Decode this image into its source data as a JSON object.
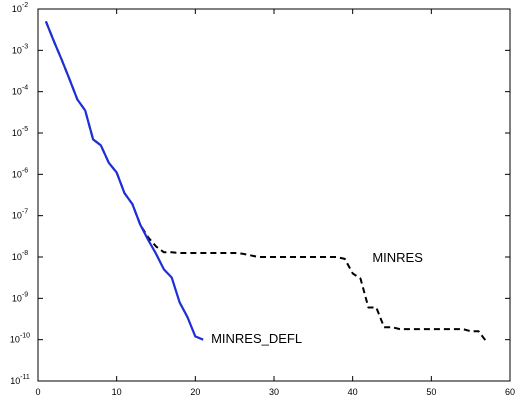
{
  "chart_data": {
    "type": "line",
    "title": "",
    "xlabel": "",
    "ylabel": "",
    "xlim": [
      0,
      60
    ],
    "ylim": [
      1e-11,
      0.01
    ],
    "yscale": "log",
    "grid": false,
    "x_ticks": [
      0,
      10,
      20,
      30,
      40,
      50,
      60
    ],
    "x_tick_labels": [
      "0",
      "10",
      "20",
      "30",
      "40",
      "50",
      "60"
    ],
    "y_ticks": [
      {
        "base": "10",
        "exp": "-11",
        "value": 1e-11
      },
      {
        "base": "10",
        "exp": "-10",
        "value": 1e-10
      },
      {
        "base": "10",
        "exp": "-9",
        "value": 1e-09
      },
      {
        "base": "10",
        "exp": "-8",
        "value": 1e-08
      },
      {
        "base": "10",
        "exp": "-7",
        "value": 1e-07
      },
      {
        "base": "10",
        "exp": "-6",
        "value": 1e-06
      },
      {
        "base": "10",
        "exp": "-5",
        "value": 1e-05
      },
      {
        "base": "10",
        "exp": "-4",
        "value": 0.0001
      },
      {
        "base": "10",
        "exp": "-3",
        "value": 0.001
      },
      {
        "base": "10",
        "exp": "-2",
        "value": 0.01
      }
    ],
    "series": [
      {
        "name": "MINRES_DEFL",
        "color": "#1f2fd6",
        "style": "solid",
        "x": [
          1,
          2,
          3,
          4,
          5,
          6,
          7,
          8,
          9,
          10,
          11,
          12,
          13,
          14,
          15,
          16,
          17,
          18,
          19,
          20,
          21
        ],
        "y": [
          0.005,
          0.0017,
          0.0006,
          0.0002,
          6.5e-05,
          3.5e-05,
          7e-06,
          5e-06,
          1.9e-06,
          1.1e-06,
          3.5e-07,
          1.9e-07,
          6e-08,
          2.6e-08,
          1.2e-08,
          5e-09,
          3.2e-09,
          8e-10,
          3.5e-10,
          1.2e-10,
          1e-10
        ]
      },
      {
        "name": "MINRES",
        "color": "#000000",
        "style": "dashed",
        "x": [
          1,
          2,
          3,
          4,
          5,
          6,
          7,
          8,
          9,
          10,
          11,
          12,
          13,
          14,
          15,
          16,
          17,
          18,
          19,
          20,
          21,
          22,
          23,
          24,
          25,
          26,
          27,
          28,
          29,
          30,
          31,
          32,
          33,
          34,
          35,
          36,
          37,
          38,
          39,
          40,
          41,
          42,
          43,
          44,
          45,
          46,
          47,
          48,
          49,
          50,
          51,
          52,
          53,
          54,
          55,
          56,
          57
        ],
        "y": [
          0.005,
          0.0017,
          0.0006,
          0.0002,
          6.5e-05,
          3.5e-05,
          7e-06,
          5e-06,
          1.9e-06,
          1.1e-06,
          3.5e-07,
          1.9e-07,
          6e-08,
          3e-08,
          1.8e-08,
          1.3e-08,
          1.3e-08,
          1.25e-08,
          1.25e-08,
          1.25e-08,
          1.25e-08,
          1.25e-08,
          1.25e-08,
          1.25e-08,
          1.25e-08,
          1.2e-08,
          1.1e-08,
          1e-08,
          1e-08,
          1e-08,
          1e-08,
          1e-08,
          1e-08,
          1e-08,
          1e-08,
          1e-08,
          1e-08,
          1e-08,
          9e-09,
          4e-09,
          3e-09,
          6e-10,
          6e-10,
          2e-10,
          2e-10,
          1.8e-10,
          1.8e-10,
          1.8e-10,
          1.8e-10,
          1.8e-10,
          1.8e-10,
          1.8e-10,
          1.8e-10,
          1.8e-10,
          1.6e-10,
          1.6e-10,
          9e-11
        ]
      }
    ],
    "annotations": [
      {
        "text": "MINRES",
        "x": 42.5,
        "y": 1e-08
      },
      {
        "text": "MINRES_DEFL",
        "x": 22,
        "y": 1.1e-10
      }
    ]
  }
}
